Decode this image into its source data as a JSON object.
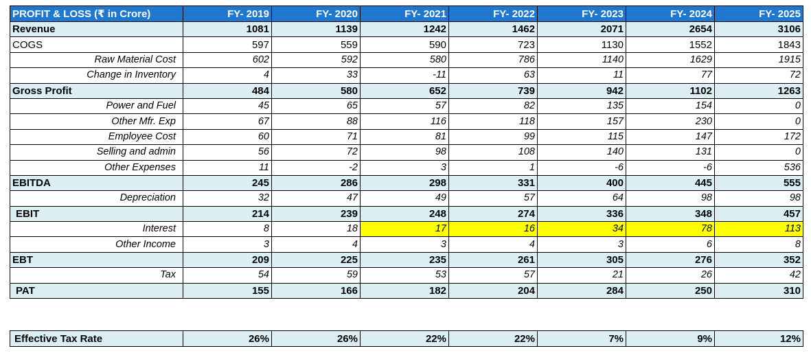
{
  "header": {
    "title": "PROFIT & LOSS (₹ in Crore)",
    "years": [
      "FY- 2019",
      "FY- 2020",
      "FY- 2021",
      "FY- 2022",
      "FY- 2023",
      "FY- 2024",
      "FY- 2025"
    ]
  },
  "rows": [
    {
      "label": "Revenue",
      "values": [
        "1081",
        "1139",
        "1242",
        "1462",
        "2071",
        "2654",
        "3106"
      ]
    },
    {
      "label": "COGS",
      "values": [
        "597",
        "559",
        "590",
        "723",
        "1130",
        "1552",
        "1843"
      ]
    },
    {
      "label": "Raw Material Cost",
      "values": [
        "602",
        "592",
        "580",
        "786",
        "1140",
        "1629",
        "1915"
      ]
    },
    {
      "label": "Change in Inventory",
      "values": [
        "4",
        "33",
        "-11",
        "63",
        "11",
        "77",
        "72"
      ]
    },
    {
      "label": "Gross Profit",
      "values": [
        "484",
        "580",
        "652",
        "739",
        "942",
        "1102",
        "1263"
      ]
    },
    {
      "label": "Power and Fuel",
      "values": [
        "45",
        "65",
        "57",
        "82",
        "135",
        "154",
        "0"
      ]
    },
    {
      "label": "Other Mfr. Exp",
      "values": [
        "67",
        "88",
        "116",
        "118",
        "157",
        "230",
        "0"
      ]
    },
    {
      "label": "Employee Cost",
      "values": [
        "60",
        "71",
        "81",
        "99",
        "115",
        "147",
        "172"
      ]
    },
    {
      "label": "Selling and admin",
      "values": [
        "56",
        "72",
        "98",
        "108",
        "140",
        "131",
        "0"
      ]
    },
    {
      "label": "Other Expenses",
      "values": [
        "11",
        "-2",
        "3",
        "1",
        "-6",
        "-6",
        "536"
      ]
    },
    {
      "label": "EBITDA",
      "values": [
        "245",
        "286",
        "298",
        "331",
        "400",
        "445",
        "555"
      ]
    },
    {
      "label": "Depreciation",
      "values": [
        "32",
        "47",
        "49",
        "57",
        "64",
        "98",
        "98"
      ]
    },
    {
      "label": "EBIT",
      "values": [
        "214",
        "239",
        "248",
        "274",
        "336",
        "348",
        "457"
      ]
    },
    {
      "label": "Interest",
      "values": [
        "8",
        "18",
        "17",
        "16",
        "34",
        "78",
        "113"
      ]
    },
    {
      "label": "Other Income",
      "values": [
        "3",
        "4",
        "3",
        "4",
        "3",
        "6",
        "8"
      ]
    },
    {
      "label": "EBT",
      "values": [
        "209",
        "225",
        "235",
        "261",
        "305",
        "276",
        "352"
      ]
    },
    {
      "label": "Tax",
      "values": [
        "54",
        "59",
        "53",
        "57",
        "21",
        "26",
        "42"
      ]
    },
    {
      "label": "PAT",
      "values": [
        "155",
        "166",
        "182",
        "204",
        "284",
        "250",
        "310"
      ]
    }
  ],
  "effective_tax_rate": {
    "label": "Effective Tax Rate",
    "values": [
      "26%",
      "26%",
      "22%",
      "22%",
      "7%",
      "9%",
      "12%"
    ]
  },
  "colors": {
    "header_bg": "#1f77cf",
    "bold_row_bg": "#daeef3",
    "highlight": "#ffff00"
  }
}
